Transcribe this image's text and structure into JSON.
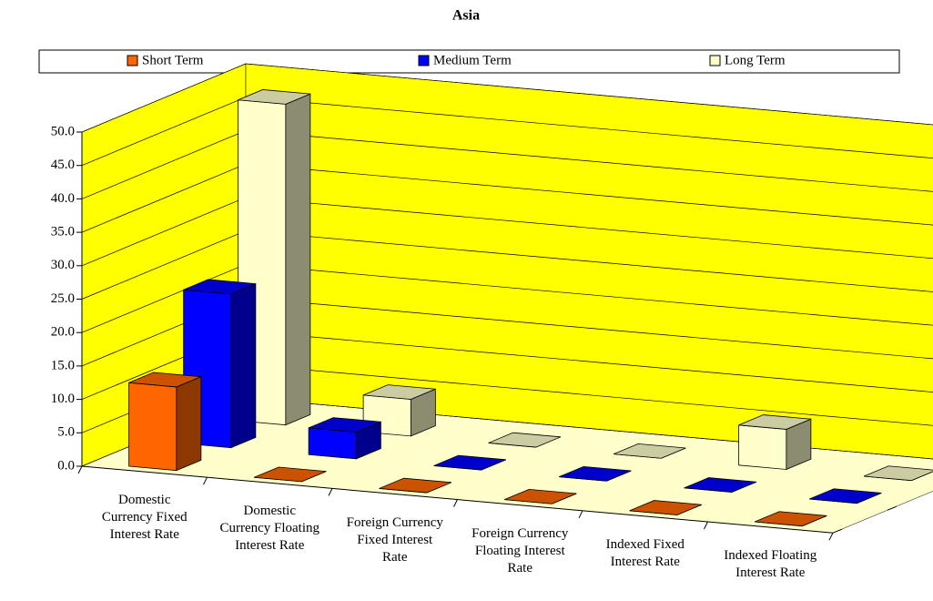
{
  "chart_data": {
    "type": "bar3d",
    "title": "Asia",
    "categories": [
      "Domestic Currency Fixed Interest Rate",
      "Domestic Currency Floating Interest Rate",
      "Foreign Currency Fixed Interest Rate",
      "Foreign Currency Floating Interest Rate",
      "Indexed Fixed Interest Rate",
      "Indexed Floating Interest Rate"
    ],
    "series": [
      {
        "name": "Short Term",
        "color": "#ff6600",
        "values": [
          12.5,
          0,
          0,
          0,
          0,
          0
        ]
      },
      {
        "name": "Medium Term",
        "color": "#0000ff",
        "values": [
          23,
          4,
          0,
          0,
          0,
          0
        ]
      },
      {
        "name": "Long Term",
        "color": "#ffffcc",
        "values": [
          48,
          5.5,
          0,
          0,
          6,
          0
        ]
      }
    ],
    "ylim": [
      0,
      50
    ],
    "yticks": [
      {
        "value": 0,
        "label": "0.0"
      },
      {
        "value": 5,
        "label": "5.0"
      },
      {
        "value": 10,
        "label": "10.0"
      },
      {
        "value": 15,
        "label": "15.0"
      },
      {
        "value": 20,
        "label": "20.0"
      },
      {
        "value": 25,
        "label": "25.0"
      },
      {
        "value": 30,
        "label": "30.0"
      },
      {
        "value": 35,
        "label": "35.0"
      },
      {
        "value": 40,
        "label": "40.0"
      },
      {
        "value": 45,
        "label": "45.0"
      },
      {
        "value": 50,
        "label": "50.0"
      }
    ],
    "grid": true,
    "wall_color": "#ffff00",
    "floor_color": "#ffffcc"
  }
}
